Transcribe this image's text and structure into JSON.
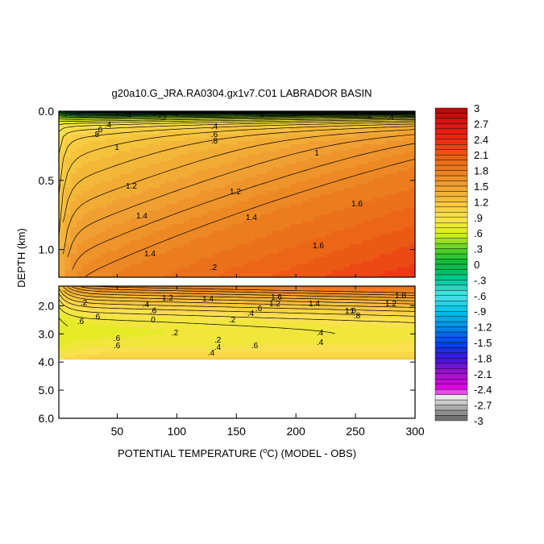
{
  "chart_data": {
    "type": "heatmap",
    "title": "g20a10.G_JRA.RA0304.gx1v7.C01 LABRADOR BASIN",
    "xlabel_parts": [
      "POTENTIAL TEMPERATURE (",
      "o",
      "C) (MODEL - OBS)"
    ],
    "ylabel": "DEPTH (km)",
    "x_ticks": [
      "50",
      "100",
      "150",
      "200",
      "250",
      "300"
    ],
    "x_tick_values": [
      50,
      100,
      150,
      200,
      250,
      300
    ],
    "xlim": [
      1,
      300
    ],
    "upper_panel": {
      "ylim": [
        0.0,
        1.2
      ],
      "y_ticks": [
        "0.0",
        "0.5",
        "1.0"
      ],
      "y_tick_values": [
        0.0,
        0.5,
        1.0
      ]
    },
    "lower_panel": {
      "ylim": [
        1.3,
        6.0
      ],
      "y_ticks": [
        "2.0",
        "3.0",
        "4.0",
        "5.0",
        "6.0"
      ],
      "y_tick_values": [
        2.0,
        3.0,
        4.0,
        5.0,
        6.0
      ],
      "data_bottom_depth": 3.9
    },
    "colorbar": {
      "labels": [
        "3",
        "2.7",
        "2.4",
        "2.1",
        "1.8",
        "1.5",
        "1.2",
        ".9",
        ".6",
        ".3",
        "0",
        "-.3",
        "-.6",
        "-.9",
        "-1.2",
        "-1.5",
        "-1.8",
        "-2.1",
        "-2.4",
        "-2.7",
        "-3"
      ],
      "values": [
        3,
        2.7,
        2.4,
        2.1,
        1.8,
        1.5,
        1.2,
        0.9,
        0.6,
        0.3,
        0,
        -0.3,
        -0.6,
        -0.9,
        -1.2,
        -1.5,
        -1.8,
        -2.1,
        -2.4,
        -2.7,
        -3
      ]
    },
    "contour_labels_upper": [
      "-.4",
      "-.2",
      "0",
      "-.2",
      "-.4",
      ".2",
      ".4",
      ".6",
      ".8",
      "1",
      "1.2",
      "1",
      "1.2",
      "1.4",
      "1.4",
      "1.6",
      "1.4",
      "1.6",
      ".2",
      ".4",
      ".6",
      ".8"
    ],
    "contour_labels_lower": [
      "1.6",
      "1.8",
      "1.2",
      "1.4",
      "1.2",
      "1.4",
      "1.2",
      "1.6",
      ".2",
      ".4",
      ".6",
      "1",
      "0",
      ".2",
      ".4",
      ".6",
      ".8",
      ".2",
      ".4",
      ".6",
      ".2",
      ".4",
      ".6",
      ".4",
      ".6",
      ".4",
      ".6",
      ".6"
    ],
    "grid": false,
    "legend": "right"
  }
}
